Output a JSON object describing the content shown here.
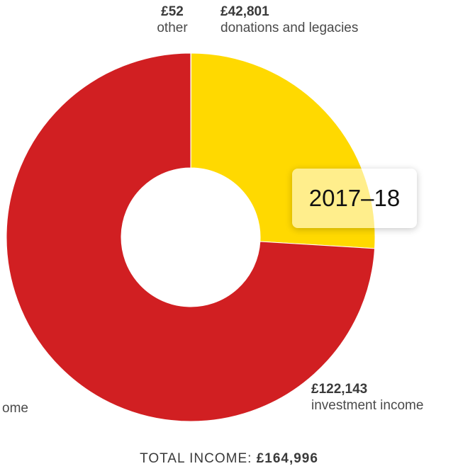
{
  "chart_data": {
    "type": "pie",
    "donut": true,
    "title": "",
    "slices": [
      {
        "value": 52,
        "value_label": "£52",
        "label": "other",
        "color": "#8db92e"
      },
      {
        "value": 42801,
        "value_label": "£42,801",
        "label": "donations and legacies",
        "color": "#ffd900"
      },
      {
        "value": 122143,
        "value_label": "£122,143",
        "label": "investment income",
        "color": "#d11f22"
      }
    ],
    "partial_label": "ome",
    "badge": "2017–18",
    "total_label": "TOTAL INCOME:",
    "total_value": "£164,996"
  }
}
